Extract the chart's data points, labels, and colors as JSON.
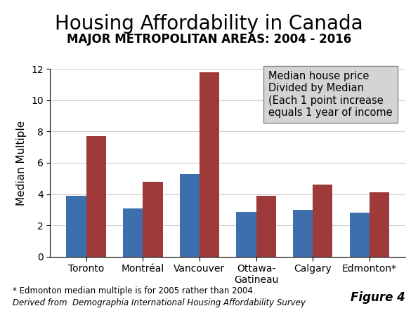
{
  "title": "Housing Affordability in Canada",
  "subtitle": "MAJOR METROPOLITAN AREAS: 2004 - 2016",
  "categories": [
    "Toronto",
    "Montréal",
    "Vancouver",
    "Ottawa-\nGatineau",
    "Calgary",
    "Edmonton*"
  ],
  "values_2004": [
    3.9,
    3.1,
    5.3,
    2.85,
    3.0,
    2.8
  ],
  "values_2016": [
    7.7,
    4.8,
    11.8,
    3.9,
    4.6,
    4.1
  ],
  "color_2004": "#3d6fad",
  "color_2016": "#9e3a3a",
  "ylabel": "Median Multiple",
  "ylim": [
    0,
    12
  ],
  "yticks": [
    0,
    2,
    4,
    6,
    8,
    10,
    12
  ],
  "annotation_text": "Median house price\nDivided by Median\n(Each 1 point increase\nequals 1 year of income",
  "footnote1": "* Edmonton median multiple is for 2005 rather than 2004.",
  "footnote2": "Derived from  Demographia International Housing Affordability Survey",
  "figure_label": "Figure 4",
  "background_color": "#ffffff",
  "title_fontsize": 20,
  "subtitle_fontsize": 12,
  "ylabel_fontsize": 11,
  "tick_fontsize": 10,
  "annotation_fontsize": 10.5
}
